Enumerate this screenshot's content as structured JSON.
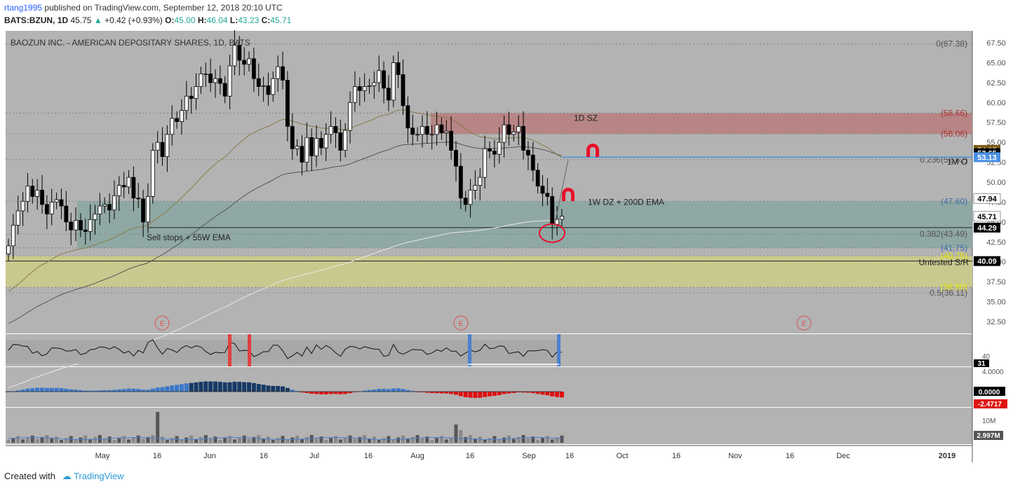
{
  "header": {
    "publisher": "rtang1995",
    "published_text": "published on TradingView.com, September 12, 2018 20:10 UTC",
    "symbol": "BATS:BZUN, 1D",
    "last": "45.75",
    "change": "+0.42 (+0.93%)",
    "o_label": "O:",
    "o_value": "45.00",
    "h_label": "H:",
    "h_value": "46.04",
    "l_label": "L:",
    "l_value": "43.23",
    "c_label": "C:",
    "c_value": "45.71"
  },
  "footer": {
    "created_with": "Created with",
    "brand": "TradingView"
  },
  "colors": {
    "plot_bg": "#b3b3b3",
    "supply_zone": "#b78585",
    "demand_zone": "#8fa8a4",
    "sr_zone": "#c9c98f",
    "ema55": "#8a7a4a",
    "ema200": "#e8e8e8",
    "ema_dark": "#555555",
    "hist_pos": "#3a78c8",
    "hist_pos_dark": "#173a66",
    "hist_neg": "#e01010",
    "magnet": "#e8102a"
  },
  "chart_data": [
    {
      "type": "candlestick",
      "title": "BAOZUN INC. - AMERICAN DEPOSITARY SHARES, 1D, BATS",
      "ylim": [
        31,
        69
      ],
      "y_ticks": [
        "67.50",
        "65.00",
        "62.50",
        "60.00",
        "57.50",
        "55.00",
        "52.50",
        "50.00",
        "47.50",
        "45.00",
        "42.50",
        "40.00",
        "37.50",
        "35.00",
        "32.50"
      ],
      "x_labels": [
        "May",
        "16",
        "Jun",
        "16",
        "Jul",
        "16",
        "Aug",
        "16",
        "Sep",
        "16",
        "Oct",
        "16",
        "Nov",
        "16",
        "Dec",
        "2019"
      ],
      "close": [
        42.0,
        44.6,
        46.4,
        47.6,
        49.5,
        48.2,
        49.0,
        47.2,
        46.0,
        47.5,
        47.8,
        47.0,
        45.0,
        44.0,
        45.2,
        44.0,
        43.8,
        45.3,
        46.0,
        47.0,
        47.2,
        46.5,
        48.3,
        49.6,
        49.4,
        50.6,
        48.0,
        47.9,
        45.0,
        48.2,
        54.0,
        55.0,
        53.2,
        56.0,
        58.0,
        57.6,
        59.0,
        60.8,
        60.5,
        62.0,
        63.6,
        63.6,
        62.5,
        63.0,
        62.4,
        60.8,
        64.6,
        67.2,
        65.3,
        64.8,
        65.5,
        63.0,
        62.0,
        62.1,
        61.0,
        63.0,
        64.5,
        62.8,
        57.0,
        54.2,
        54.5,
        52.5,
        55.6,
        53.3,
        55.5,
        54.3,
        56.0,
        57.0,
        56.2,
        54.0,
        56.5,
        60.0,
        62.0,
        61.5,
        62.0,
        62.1,
        62.5,
        64.0,
        61.8,
        60.3,
        65.0,
        63.5,
        59.6,
        56.8,
        56.0,
        56.0,
        57.0,
        56.0,
        56.0,
        57.2,
        56.2,
        56.4,
        54.0,
        52.0,
        48.0,
        47.2,
        49.0,
        49.6,
        50.6,
        54.2,
        53.9,
        53.5,
        55.0,
        57.2,
        56.0,
        56.3,
        57.0,
        54.0,
        53.4,
        51.5,
        49.5,
        48.6,
        48.2,
        44.7,
        45.33,
        45.71
      ],
      "y_levels": [
        {
          "label": "0(67.38)",
          "value": 67.38
        },
        {
          "label": "(58.66)",
          "value": 58.66
        },
        {
          "label": "(56.06)",
          "value": 56.06
        },
        {
          "label": "0.236(52.82)",
          "value": 52.82
        },
        {
          "label": "(47.60)",
          "value": 47.6
        },
        {
          "label": "0.382(43.49)",
          "value": 43.49
        },
        {
          "label": "(41.75)",
          "value": 41.75
        },
        {
          "label": "(40.75)",
          "value": 40.75
        },
        {
          "label": "(36.80)",
          "value": 36.8
        },
        {
          "label": "0.5(36.11)",
          "value": 36.11
        }
      ],
      "badges": [
        {
          "label": "54.05",
          "value": 54.05,
          "bg": "#7a5c12",
          "fg": "#ffffff"
        },
        {
          "label": "53.65",
          "value": 53.65,
          "bg": "#000000",
          "fg": "#ffffff"
        },
        {
          "label": "53.13",
          "value": 53.13,
          "bg": "#4a90e2",
          "fg": "#ffffff"
        },
        {
          "label": "47.94",
          "value": 47.94,
          "bg": "#ffffff",
          "fg": "#000000"
        },
        {
          "label": "45.71",
          "value": 45.71,
          "bg": "#ffffff",
          "fg": "#000000"
        },
        {
          "label": "44.29",
          "value": 44.29,
          "bg": "#000000",
          "fg": "#ffffff"
        },
        {
          "label": "40.09",
          "value": 40.09,
          "bg": "#000000",
          "fg": "#ffffff"
        }
      ],
      "zones": [
        {
          "label": "1D SZ",
          "from": 56.06,
          "to": 58.66
        },
        {
          "label": "1W DZ + 200D EMA",
          "from": 41.75,
          "to": 47.6
        },
        {
          "label": "Untested S/R",
          "from": 36.8,
          "to": 40.75
        }
      ],
      "annotations": [
        "Sell stops + 55W EMA",
        "1M O"
      ],
      "earnings_marker": "E"
    },
    {
      "type": "line",
      "name": "oscillator",
      "y_tick": "40",
      "last_label": "31"
    },
    {
      "type": "bar",
      "name": "histogram",
      "y_tick": "4.0000",
      "zero_label": "0.0000",
      "last_label": "-2.4717"
    },
    {
      "type": "bar",
      "name": "volume",
      "y_tick": "10M",
      "last_label": "2.997M"
    }
  ]
}
